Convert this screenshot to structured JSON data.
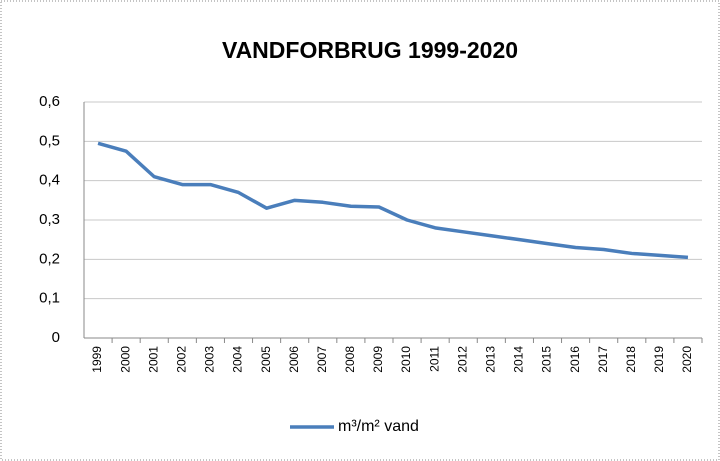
{
  "chart_data": {
    "type": "line",
    "title": "VANDFORBRUG 1999-2020",
    "categories": [
      "1999",
      "2000",
      "2001",
      "2002",
      "2003",
      "2004",
      "2005",
      "2006",
      "2007",
      "2008",
      "2009",
      "2010",
      "2011",
      "2012",
      "2013",
      "2014",
      "2015",
      "2016",
      "2017",
      "2018",
      "2019",
      "2020"
    ],
    "series": [
      {
        "name": "m³/m² vand",
        "color": "#4a7ebb",
        "values": [
          0.495,
          0.475,
          0.41,
          0.39,
          0.39,
          0.37,
          0.33,
          0.35,
          0.345,
          0.335,
          0.333,
          0.3,
          0.28,
          0.27,
          0.26,
          0.25,
          0.24,
          0.23,
          0.225,
          0.215,
          0.21,
          0.205
        ]
      }
    ],
    "ylim": [
      0,
      0.6
    ],
    "yticks": [
      0,
      {
        "value": 0.1,
        "label": "0,1"
      },
      {
        "value": 0.2,
        "label": "0,2"
      },
      {
        "value": 0.3,
        "label": "0,3"
      },
      {
        "value": 0.4,
        "label": "0,4"
      },
      {
        "value": 0.5,
        "label": "0,5"
      },
      {
        "value": 0.6,
        "label": "0,6"
      }
    ],
    "grid": true,
    "legend": "bottom"
  }
}
